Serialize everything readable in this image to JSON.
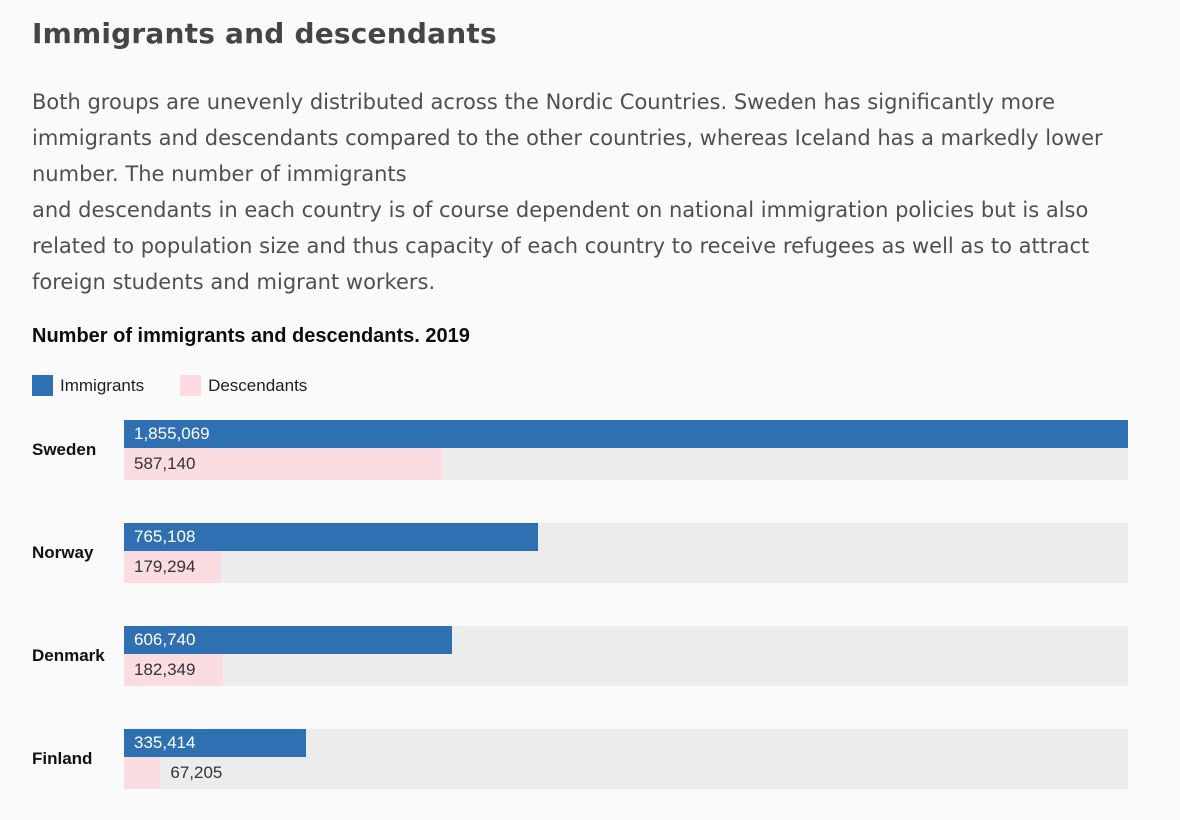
{
  "header": {
    "title": "Immigrants and descendants"
  },
  "intro": {
    "text": "Both groups are unevenly distributed across the Nordic Countries. Sweden has significantly more immigrants and descendants compared to the other countries, whereas Iceland has a markedly lower number. The number of immigrants\nand descendants in each country is of course dependent on national immigration policies but is also related to population size and thus capacity of each country to receive refugees as well as to attract foreign students and migrant workers."
  },
  "chart": {
    "title": "Number of immigrants and descendants. 2019"
  },
  "chart_data": {
    "type": "bar",
    "orientation": "horizontal",
    "title": "Number of immigrants and descendants. 2019",
    "categories": [
      "Sweden",
      "Norway",
      "Denmark",
      "Finland"
    ],
    "series": [
      {
        "name": "Immigrants",
        "color": "#2f70b2",
        "values": [
          1855069,
          765108,
          606740,
          335414
        ],
        "labels": [
          "1,855,069",
          "765,108",
          "606,740",
          "335,414"
        ]
      },
      {
        "name": "Descendants",
        "color": "#fadce1",
        "values": [
          587140,
          179294,
          182349,
          67205
        ],
        "labels": [
          "587,140",
          "179,294",
          "182,349",
          "67,205"
        ]
      }
    ],
    "xmax": 1855069,
    "xlabel": "",
    "ylabel": "",
    "grid": false,
    "legend_position": "top",
    "track_color": "#ececec",
    "background_color": "#fafafa"
  }
}
